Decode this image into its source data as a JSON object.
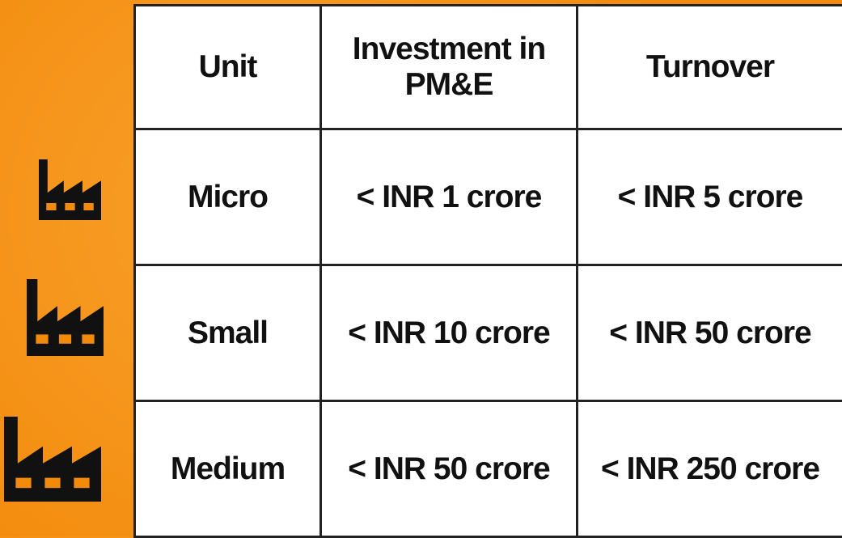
{
  "table": {
    "header": [
      "Unit",
      "Investment in PM&E",
      "Turnover"
    ],
    "rows": [
      [
        "Micro",
        "< INR 1 crore",
        "< INR 5 crore"
      ],
      [
        "Small",
        "< INR 10 crore",
        "< INR 50 crore"
      ],
      [
        "Medium",
        "< INR 50 crore",
        "< INR 250 crore"
      ]
    ]
  }
}
